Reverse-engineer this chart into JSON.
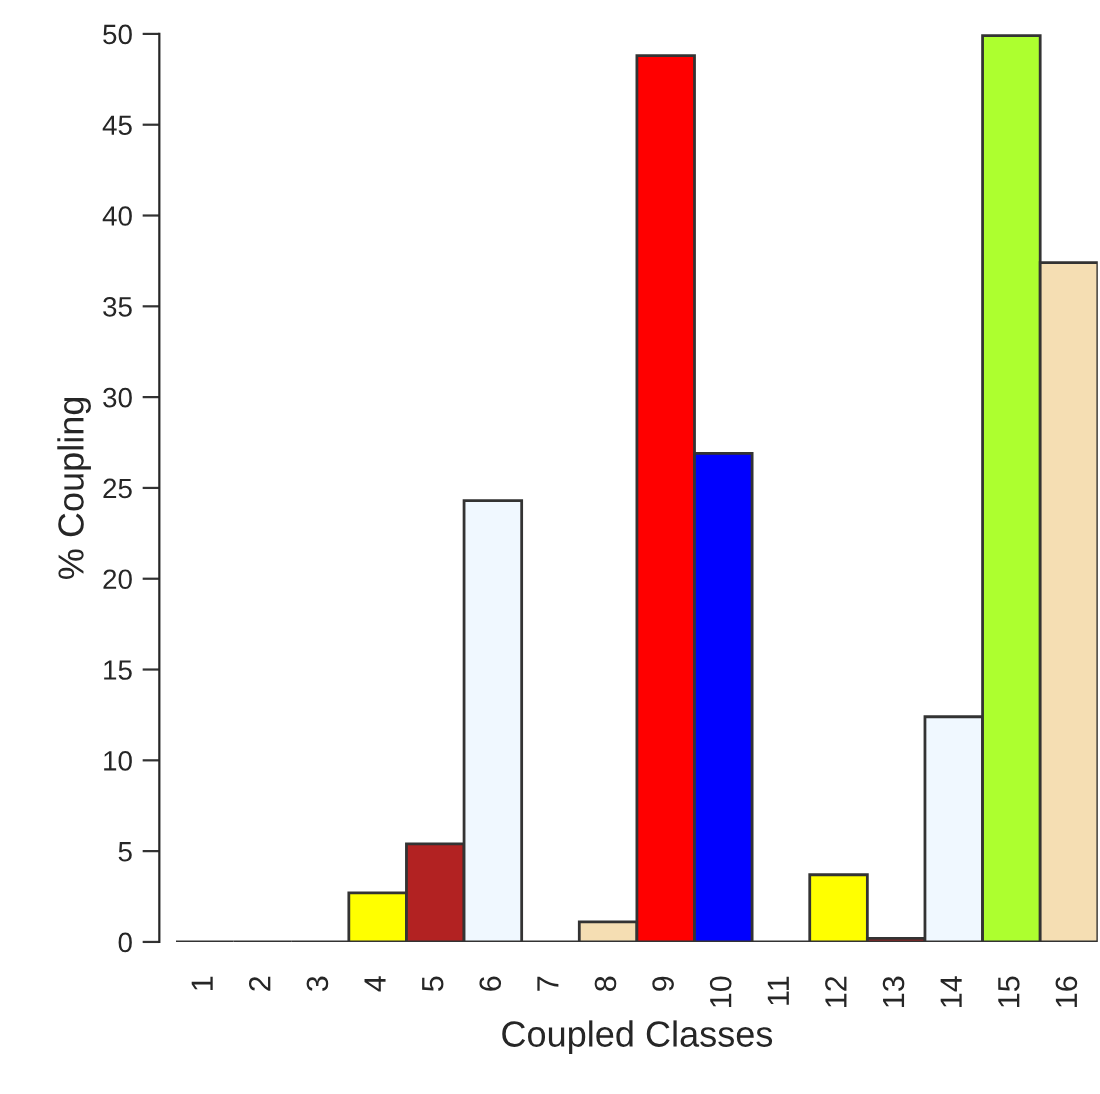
{
  "chart_data": {
    "type": "bar",
    "xlabel": "Coupled Classes",
    "ylabel": "% Coupling",
    "categories": [
      "1",
      "2",
      "3",
      "4",
      "5",
      "6",
      "7",
      "8",
      "9",
      "10",
      "11",
      "12",
      "13",
      "14",
      "15",
      "16"
    ],
    "values": [
      0,
      0,
      0,
      2.7,
      5.4,
      24.3,
      0,
      1.1,
      48.8,
      26.9,
      0,
      3.7,
      0.2,
      12.4,
      49.9,
      37.4
    ],
    "colors": [
      null,
      null,
      null,
      "#ffff00",
      "#b22222",
      "#f0f8ff",
      null,
      "#f5deb3",
      "#ff0000",
      "#0000ff",
      null,
      "#ffff00",
      "#b22222",
      "#f0f8ff",
      "#adff2f",
      "#f5deb3"
    ],
    "ylim": [
      0,
      50
    ],
    "yticks": [
      0,
      5,
      10,
      15,
      20,
      25,
      30,
      35,
      40,
      45,
      50
    ],
    "grid": false
  }
}
